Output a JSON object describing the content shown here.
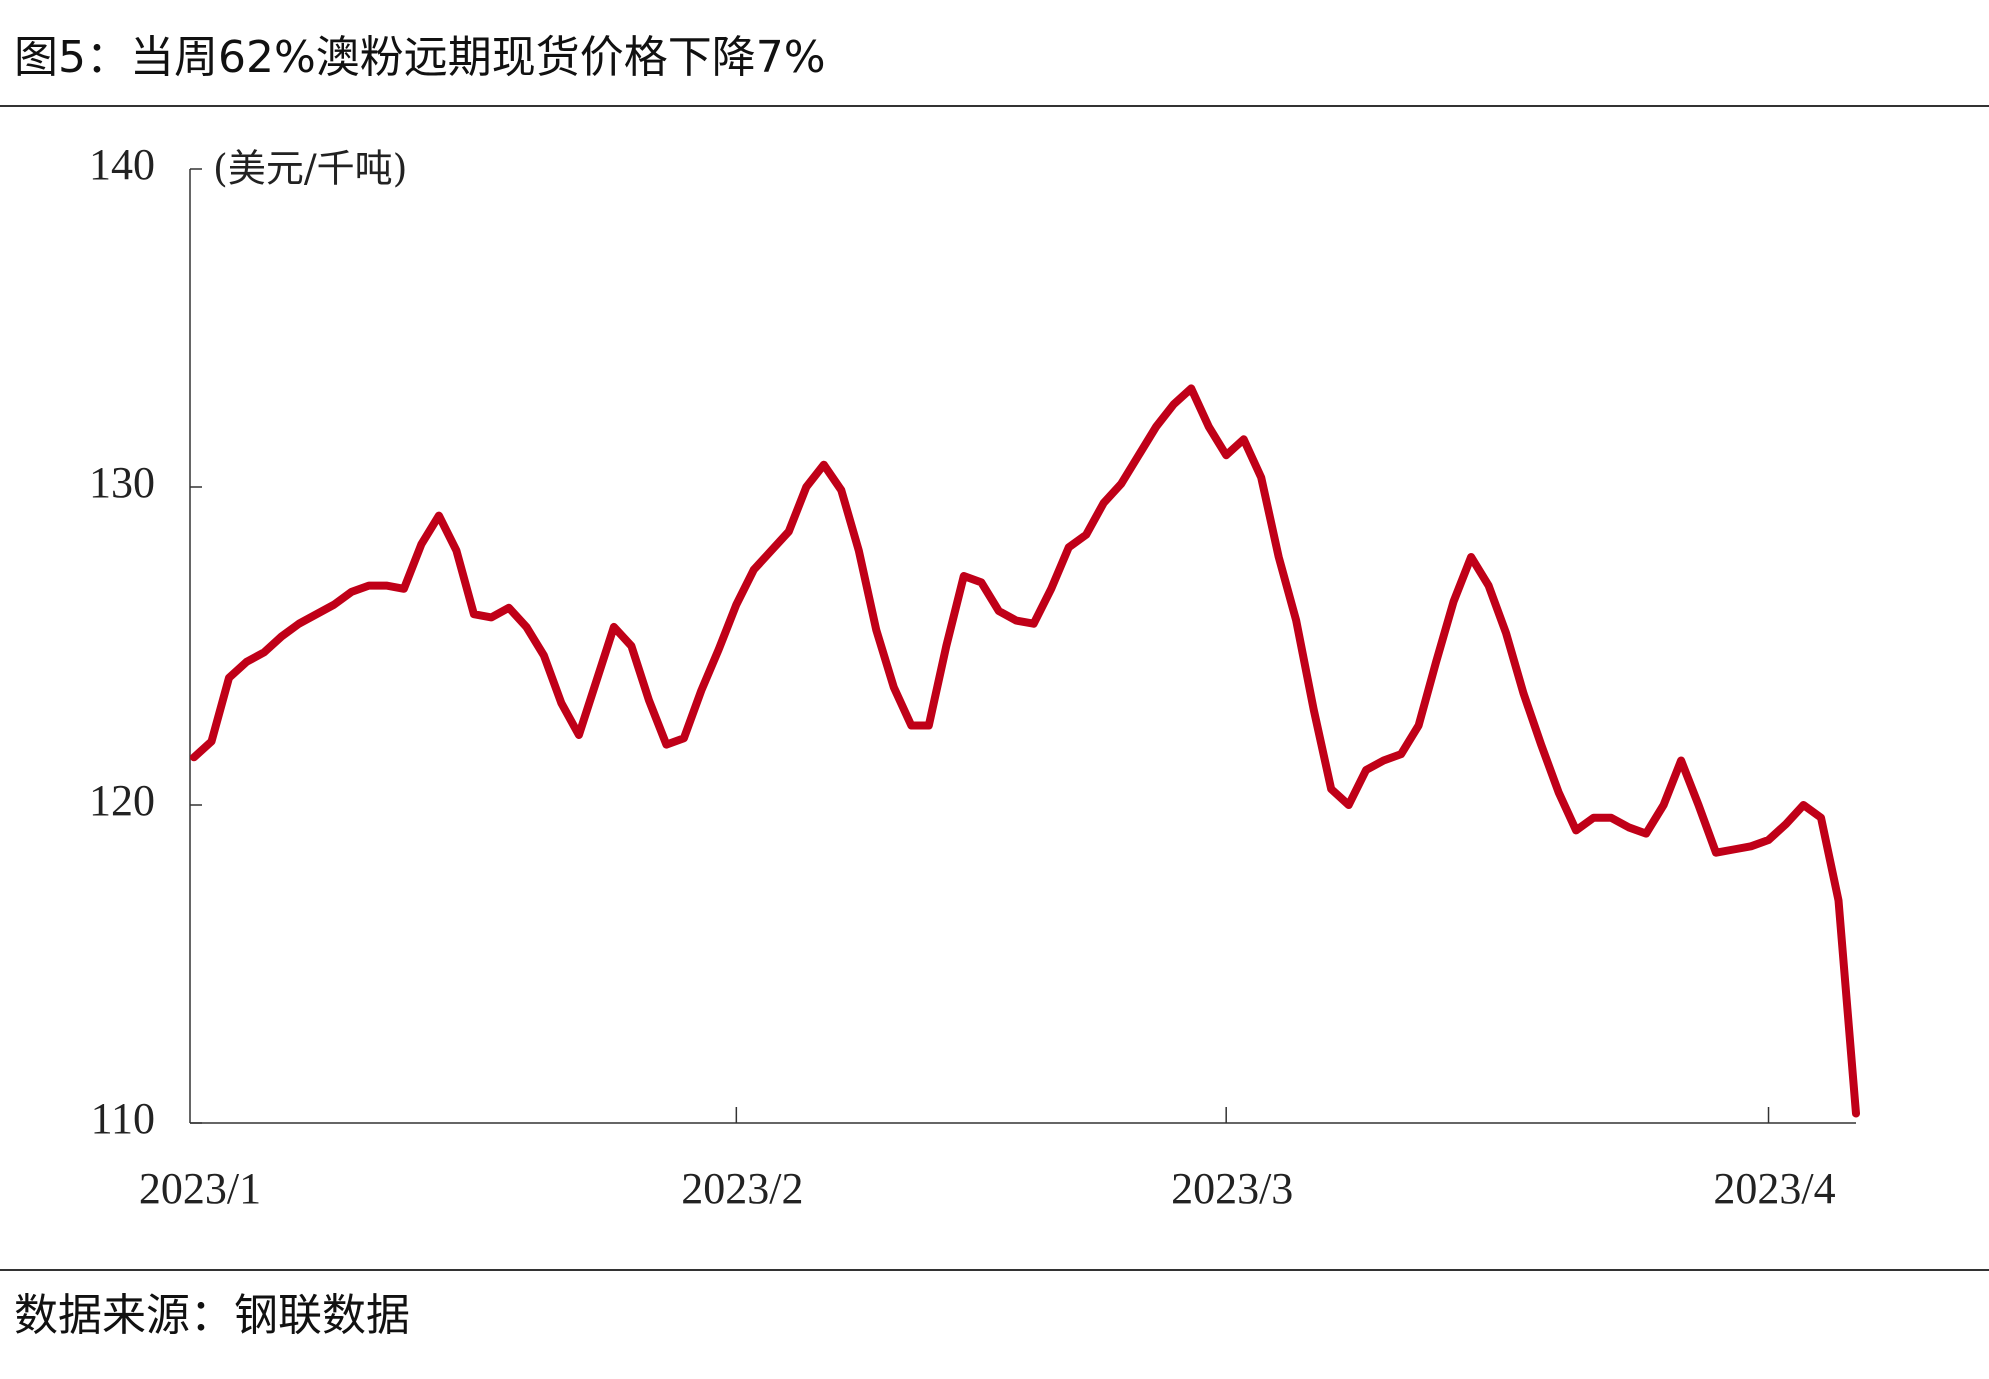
{
  "chart_data": {
    "type": "line",
    "title": "图5：当周62%澳粉远期现货价格下降7%",
    "y_label": "(美元/千吨)",
    "source": "数据来源：钢联数据",
    "categories": [
      "2023/1",
      null,
      null,
      null,
      null,
      null,
      null,
      null,
      null,
      null,
      null,
      null,
      null,
      null,
      null,
      null,
      null,
      null,
      null,
      null,
      null,
      null,
      null,
      null,
      null,
      null,
      null,
      null,
      null,
      null,
      null,
      "2023/2",
      null,
      null,
      null,
      null,
      null,
      null,
      null,
      null,
      null,
      null,
      null,
      null,
      null,
      null,
      null,
      null,
      null,
      null,
      null,
      null,
      null,
      null,
      null,
      null,
      null,
      null,
      null,
      "2023/3",
      null,
      null,
      null,
      null,
      null,
      null,
      null,
      null,
      null,
      null,
      null,
      null,
      null,
      null,
      null,
      null,
      null,
      null,
      null,
      null,
      null,
      null,
      null,
      null,
      null,
      null,
      null,
      null,
      null,
      null,
      "2023/4",
      null,
      null,
      null,
      null,
      null
    ],
    "values": [
      121.5,
      122.0,
      124.0,
      124.5,
      124.8,
      125.3,
      125.7,
      126.0,
      126.3,
      126.7,
      126.9,
      126.9,
      126.8,
      128.2,
      129.1,
      128.0,
      126.0,
      125.9,
      126.2,
      125.6,
      124.7,
      123.2,
      122.2,
      123.9,
      125.6,
      125.0,
      123.3,
      121.9,
      122.1,
      123.6,
      124.9,
      126.3,
      127.4,
      128.0,
      128.6,
      130.0,
      130.7,
      129.9,
      128.0,
      125.5,
      123.7,
      122.5,
      122.5,
      125.0,
      127.2,
      127.0,
      126.1,
      125.8,
      125.7,
      126.8,
      128.1,
      128.5,
      129.5,
      130.1,
      131.0,
      131.9,
      132.6,
      133.1,
      131.9,
      131.0,
      131.5,
      130.3,
      127.8,
      125.8,
      123.0,
      120.5,
      120.0,
      121.1,
      121.4,
      121.6,
      122.5,
      124.5,
      126.4,
      127.8,
      126.9,
      125.4,
      123.5,
      121.9,
      120.4,
      119.2,
      119.6,
      119.6,
      119.3,
      119.1,
      120.0,
      121.4,
      120.0,
      118.5,
      118.6,
      118.7,
      118.9,
      119.4,
      120.0,
      119.6,
      117.0,
      110.3
    ],
    "color": "#c00018",
    "ylim": [
      110,
      140
    ],
    "yticks": [
      110,
      120,
      130,
      140
    ]
  }
}
